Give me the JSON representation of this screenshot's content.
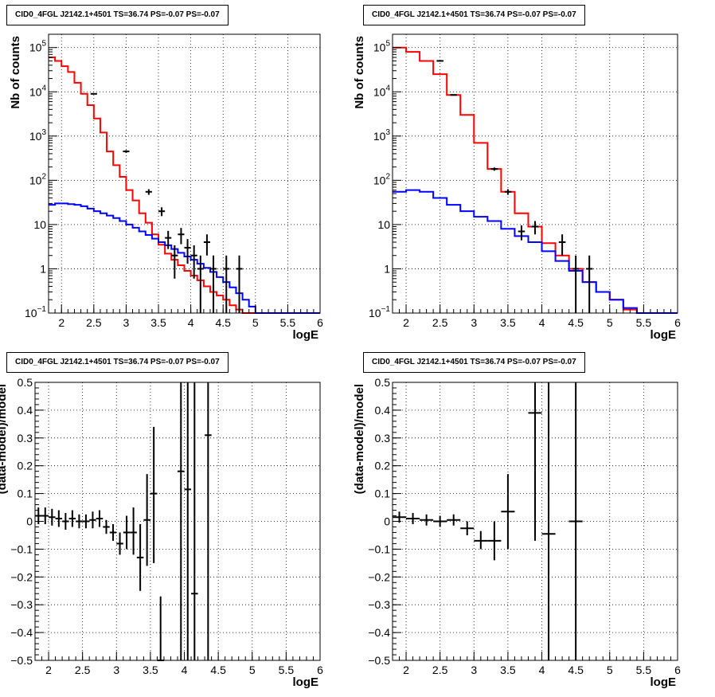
{
  "pads": [
    {
      "title": "CID0_4FGL J2142.1+4501 TS=36.74 PS=-0.07 PS=-0.07",
      "chart_data": {
        "type": "line",
        "xlabel": "logE",
        "ylabel": "Nb of counts",
        "xlim": [
          1.8,
          6.0
        ],
        "ylim": [
          0.1,
          200000
        ],
        "yscale": "log",
        "grid": true,
        "x_ticks": [
          "2",
          "2.5",
          "3",
          "3.5",
          "4",
          "4.5",
          "5",
          "5.5",
          "6"
        ],
        "y_ticks": [
          {
            "v": 0.1,
            "b": "10",
            "e": "−1"
          },
          {
            "v": 1,
            "b": "1",
            "e": ""
          },
          {
            "v": 10,
            "b": "10",
            "e": ""
          },
          {
            "v": 100,
            "b": "10",
            "e": "2"
          },
          {
            "v": 1000,
            "b": "10",
            "e": "3"
          },
          {
            "v": 10000,
            "b": "10",
            "e": "4"
          },
          {
            "v": 100000,
            "b": "10",
            "e": "5"
          }
        ],
        "bin_edges": [
          1.8,
          1.9,
          2.0,
          2.1,
          2.2,
          2.3,
          2.4,
          2.5,
          2.6,
          2.7,
          2.8,
          2.9,
          3.0,
          3.1,
          3.2,
          3.3,
          3.4,
          3.5,
          3.6,
          3.7,
          3.8,
          3.9,
          4.0,
          4.1,
          4.2,
          4.3,
          4.4,
          4.5,
          4.6,
          4.7,
          4.8,
          4.9,
          5.0,
          5.1,
          5.2,
          5.3,
          5.4,
          5.5,
          5.6,
          5.7,
          5.8,
          5.9,
          6.0
        ],
        "series": [
          {
            "name": "",
            "color": "#ff0000",
            "values": [
              60000,
              50000,
              38000,
              28000,
              16000,
              9000,
              5000,
              2500,
              1200,
              450,
              220,
              120,
              60,
              35,
              18,
              11,
              6,
              3.5,
              2.2,
              1.6,
              1.2,
              0.9,
              0.7,
              0.55,
              0.4,
              0.3,
              0.25,
              0.2,
              0.15,
              0.12,
              0.1,
              0.1,
              0.1,
              0.1,
              0.1,
              0.1,
              0.1,
              0.1,
              0.1,
              0.1,
              0.1,
              0.1
            ]
          },
          {
            "name": "",
            "color": "#0000ff",
            "values": [
              28,
              30,
              30,
              29,
              28,
              26,
              23,
              20,
              18,
              16,
              14,
              12,
              10,
              8.5,
              7,
              5.8,
              4.8,
              4,
              3.4,
              2.8,
              2.3,
              1.9,
              1.6,
              1.3,
              1.05,
              0.85,
              0.65,
              0.5,
              0.38,
              0.28,
              0.2,
              0.14,
              0.1,
              0.1,
              0.1,
              0.1,
              0.1,
              0.1,
              0.1,
              0.1,
              0.1,
              0.1
            ]
          },
          {
            "name": "",
            "color": "#000000",
            "kind": "points",
            "points": [
              {
                "x": 2.5,
                "y": 9000,
                "lo": 8800,
                "hi": 9200
              },
              {
                "x": 3.0,
                "y": 450,
                "lo": 420,
                "hi": 480
              },
              {
                "x": 3.35,
                "y": 55,
                "lo": 47,
                "hi": 63
              },
              {
                "x": 3.55,
                "y": 20,
                "lo": 15.5,
                "hi": 24.5
              },
              {
                "x": 3.65,
                "y": 5,
                "lo": 2.8,
                "hi": 7.2
              },
              {
                "x": 3.75,
                "y": 2,
                "lo": 0.6,
                "hi": 3.4
              },
              {
                "x": 3.85,
                "y": 6,
                "lo": 3.6,
                "hi": 8.4
              },
              {
                "x": 3.95,
                "y": 3,
                "lo": 1.3,
                "hi": 4.7
              },
              {
                "x": 4.05,
                "y": 2,
                "lo": 0.6,
                "hi": 3.4
              },
              {
                "x": 4.15,
                "y": 1,
                "lo": 0.1,
                "hi": 2.0
              },
              {
                "x": 4.25,
                "y": 4,
                "lo": 2.0,
                "hi": 6.0
              },
              {
                "x": 4.35,
                "y": 1,
                "lo": 0.1,
                "hi": 2.0
              },
              {
                "x": 4.55,
                "y": 1,
                "lo": 0.1,
                "hi": 2.0
              },
              {
                "x": 4.75,
                "y": 1,
                "lo": 0.1,
                "hi": 2.0
              }
            ]
          }
        ]
      }
    },
    {
      "title": "CID0_4FGL J2142.1+4501 TS=36.74 PS=-0.07 PS=-0.07",
      "chart_data": {
        "type": "line",
        "xlabel": "logE",
        "ylabel": "Nb of counts",
        "xlim": [
          1.8,
          6.0
        ],
        "ylim": [
          0.1,
          200000
        ],
        "yscale": "log",
        "grid": true,
        "x_ticks": [
          "2",
          "2.5",
          "3",
          "3.5",
          "4",
          "4.5",
          "5",
          "5.5",
          "6"
        ],
        "y_ticks": [
          {
            "v": 0.1,
            "b": "10",
            "e": "−1"
          },
          {
            "v": 1,
            "b": "1",
            "e": ""
          },
          {
            "v": 10,
            "b": "10",
            "e": ""
          },
          {
            "v": 100,
            "b": "10",
            "e": "2"
          },
          {
            "v": 1000,
            "b": "10",
            "e": "3"
          },
          {
            "v": 10000,
            "b": "10",
            "e": "4"
          },
          {
            "v": 100000,
            "b": "10",
            "e": "5"
          }
        ],
        "bin_edges": [
          1.8,
          2.0,
          2.2,
          2.4,
          2.6,
          2.8,
          3.0,
          3.2,
          3.4,
          3.6,
          3.8,
          4.0,
          4.2,
          4.4,
          4.6,
          4.8,
          5.0,
          5.2,
          5.4,
          5.6,
          5.8,
          6.0
        ],
        "series": [
          {
            "name": "",
            "color": "#ff0000",
            "values": [
              100000,
              80000,
              50000,
              25000,
              8500,
              3000,
              700,
              180,
              55,
              18,
              9,
              3.8,
              2,
              1,
              0.5,
              0.3,
              0.2,
              0.12,
              0.1,
              0.1,
              0.1
            ]
          },
          {
            "name": "",
            "color": "#0000ff",
            "values": [
              55,
              60,
              55,
              40,
              28,
              20,
              15,
              12,
              8,
              5.5,
              4,
              2.5,
              1.5,
              0.9,
              0.5,
              0.3,
              0.2,
              0.13,
              0.1,
              0.1,
              0.1
            ]
          },
          {
            "name": "",
            "color": "#000000",
            "kind": "points",
            "points": [
              {
                "x": 2.5,
                "y": 50000,
                "lo": 49500,
                "hi": 50500
              },
              {
                "x": 2.7,
                "y": 8500,
                "lo": 8300,
                "hi": 8700
              },
              {
                "x": 3.3,
                "y": 180,
                "lo": 165,
                "hi": 195
              },
              {
                "x": 3.5,
                "y": 55,
                "lo": 47,
                "hi": 63
              },
              {
                "x": 3.7,
                "y": 7,
                "lo": 4.4,
                "hi": 9.6
              },
              {
                "x": 3.9,
                "y": 9,
                "lo": 6,
                "hi": 12
              },
              {
                "x": 4.3,
                "y": 4,
                "lo": 2,
                "hi": 6
              },
              {
                "x": 4.5,
                "y": 1,
                "lo": 0.1,
                "hi": 2.0
              },
              {
                "x": 4.7,
                "y": 1,
                "lo": 0.1,
                "hi": 2.0
              }
            ]
          }
        ]
      }
    },
    {
      "title": "CID0_4FGL J2142.1+4501 TS=36.74 PS=-0.07 PS=-0.07",
      "chart_data": {
        "type": "scatter",
        "xlabel": "logE",
        "ylabel": "(data-model)/model",
        "xlim": [
          1.8,
          6.0
        ],
        "ylim": [
          -0.5,
          0.5
        ],
        "yscale": "linear",
        "grid": true,
        "x_ticks": [
          "2",
          "2.5",
          "3",
          "3.5",
          "4",
          "4.5",
          "5",
          "5.5",
          "6"
        ],
        "y_ticks": [
          {
            "v": -0.5,
            "b": "−0.5",
            "e": ""
          },
          {
            "v": -0.4,
            "b": "−0.4",
            "e": ""
          },
          {
            "v": -0.3,
            "b": "−0.3",
            "e": ""
          },
          {
            "v": -0.2,
            "b": "−0.2",
            "e": ""
          },
          {
            "v": -0.1,
            "b": "−0.1",
            "e": ""
          },
          {
            "v": 0,
            "b": "0",
            "e": ""
          },
          {
            "v": 0.1,
            "b": "0.1",
            "e": ""
          },
          {
            "v": 0.2,
            "b": "0.2",
            "e": ""
          },
          {
            "v": 0.3,
            "b": "0.3",
            "e": ""
          },
          {
            "v": 0.4,
            "b": "0.4",
            "e": ""
          },
          {
            "v": 0.5,
            "b": "0.5",
            "e": ""
          }
        ],
        "series": [
          {
            "name": "",
            "color": "#000000",
            "kind": "points",
            "points": [
              {
                "x": 1.85,
                "y": 0.02,
                "lo": -0.01,
                "hi": 0.05,
                "hw": 0.05
              },
              {
                "x": 1.95,
                "y": 0.02,
                "lo": -0.01,
                "hi": 0.05,
                "hw": 0.05
              },
              {
                "x": 2.05,
                "y": 0.015,
                "lo": -0.015,
                "hi": 0.045,
                "hw": 0.05
              },
              {
                "x": 2.15,
                "y": 0.01,
                "lo": -0.02,
                "hi": 0.04,
                "hw": 0.05
              },
              {
                "x": 2.25,
                "y": 0.0,
                "lo": -0.03,
                "hi": 0.03,
                "hw": 0.05
              },
              {
                "x": 2.35,
                "y": 0.01,
                "lo": -0.02,
                "hi": 0.04,
                "hw": 0.05
              },
              {
                "x": 2.45,
                "y": 0.0,
                "lo": -0.025,
                "hi": 0.025,
                "hw": 0.05
              },
              {
                "x": 2.55,
                "y": 0.0,
                "lo": -0.025,
                "hi": 0.025,
                "hw": 0.05
              },
              {
                "x": 2.65,
                "y": 0.005,
                "lo": -0.025,
                "hi": 0.035,
                "hw": 0.05
              },
              {
                "x": 2.75,
                "y": 0.01,
                "lo": -0.02,
                "hi": 0.04,
                "hw": 0.05
              },
              {
                "x": 2.85,
                "y": -0.02,
                "lo": -0.045,
                "hi": 0.005,
                "hw": 0.05
              },
              {
                "x": 2.95,
                "y": -0.04,
                "lo": -0.07,
                "hi": -0.01,
                "hw": 0.05
              },
              {
                "x": 3.05,
                "y": -0.08,
                "lo": -0.12,
                "hi": -0.04,
                "hw": 0.05
              },
              {
                "x": 3.15,
                "y": -0.04,
                "lo": -0.1,
                "hi": 0.02,
                "hw": 0.05
              },
              {
                "x": 3.25,
                "y": -0.04,
                "lo": -0.12,
                "hi": 0.05,
                "hw": 0.05
              },
              {
                "x": 3.35,
                "y": -0.13,
                "lo": -0.25,
                "hi": -0.01,
                "hw": 0.05
              },
              {
                "x": 3.45,
                "y": 0.005,
                "lo": -0.16,
                "hi": 0.17,
                "hw": 0.05
              },
              {
                "x": 3.55,
                "y": 0.1,
                "lo": -0.15,
                "hi": 0.34,
                "hw": 0.05
              },
              {
                "x": 3.65,
                "y": -0.5,
                "lo": -0.5,
                "hi": -0.27,
                "hw": 0.05
              },
              {
                "x": 3.95,
                "y": 0.18,
                "lo": -0.5,
                "hi": 0.5,
                "hw": 0.05
              },
              {
                "x": 4.05,
                "y": 0.115,
                "lo": -0.5,
                "hi": 0.5,
                "hw": 0.05
              },
              {
                "x": 4.15,
                "y": -0.26,
                "lo": -0.5,
                "hi": 0.5,
                "hw": 0.05
              },
              {
                "x": 4.35,
                "y": 0.31,
                "lo": -0.5,
                "hi": 0.5,
                "hw": 0.05
              }
            ]
          }
        ]
      }
    },
    {
      "title": "CID0_4FGL J2142.1+4501 TS=36.74 PS=-0.07 PS=-0.07",
      "chart_data": {
        "type": "scatter",
        "xlabel": "logE",
        "ylabel": "(data-model)/model",
        "xlim": [
          1.8,
          6.0
        ],
        "ylim": [
          -0.5,
          0.5
        ],
        "yscale": "linear",
        "grid": true,
        "x_ticks": [
          "2",
          "2.5",
          "3",
          "3.5",
          "4",
          "4.5",
          "5",
          "5.5",
          "6"
        ],
        "y_ticks": [
          {
            "v": -0.5,
            "b": "−0.5",
            "e": ""
          },
          {
            "v": -0.4,
            "b": "−0.4",
            "e": ""
          },
          {
            "v": -0.3,
            "b": "−0.3",
            "e": ""
          },
          {
            "v": -0.2,
            "b": "−0.2",
            "e": ""
          },
          {
            "v": -0.1,
            "b": "−0.1",
            "e": ""
          },
          {
            "v": 0,
            "b": "0",
            "e": ""
          },
          {
            "v": 0.1,
            "b": "0.1",
            "e": ""
          },
          {
            "v": 0.2,
            "b": "0.2",
            "e": ""
          },
          {
            "v": 0.3,
            "b": "0.3",
            "e": ""
          },
          {
            "v": 0.4,
            "b": "0.4",
            "e": ""
          },
          {
            "v": 0.5,
            "b": "0.5",
            "e": ""
          }
        ],
        "series": [
          {
            "name": "",
            "color": "#000000",
            "kind": "points",
            "points": [
              {
                "x": 1.9,
                "y": 0.015,
                "lo": -0.005,
                "hi": 0.035,
                "hw": 0.1
              },
              {
                "x": 2.1,
                "y": 0.01,
                "lo": -0.01,
                "hi": 0.03,
                "hw": 0.1
              },
              {
                "x": 2.3,
                "y": 0.005,
                "lo": -0.015,
                "hi": 0.025,
                "hw": 0.1
              },
              {
                "x": 2.5,
                "y": 0.0,
                "lo": -0.02,
                "hi": 0.02,
                "hw": 0.1
              },
              {
                "x": 2.7,
                "y": 0.005,
                "lo": -0.015,
                "hi": 0.025,
                "hw": 0.1
              },
              {
                "x": 2.9,
                "y": -0.025,
                "lo": -0.05,
                "hi": 0.0,
                "hw": 0.1
              },
              {
                "x": 3.1,
                "y": -0.07,
                "lo": -0.1,
                "hi": -0.035,
                "hw": 0.1
              },
              {
                "x": 3.3,
                "y": -0.07,
                "lo": -0.14,
                "hi": 0.0,
                "hw": 0.1
              },
              {
                "x": 3.5,
                "y": 0.035,
                "lo": -0.1,
                "hi": 0.17,
                "hw": 0.1
              },
              {
                "x": 3.9,
                "y": 0.39,
                "lo": -0.07,
                "hi": 0.5,
                "hw": 0.1
              },
              {
                "x": 4.1,
                "y": -0.045,
                "lo": -0.5,
                "hi": 0.5,
                "hw": 0.1
              },
              {
                "x": 4.5,
                "y": 0.0,
                "lo": -0.5,
                "hi": 0.5,
                "hw": 0.1
              }
            ]
          }
        ]
      }
    }
  ]
}
